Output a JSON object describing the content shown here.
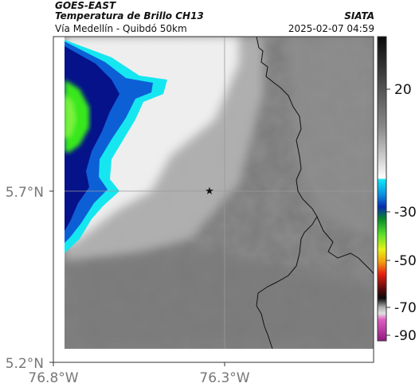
{
  "header": {
    "satellite": "GOES-EAST",
    "product": "Temperatura de Brillo CH13",
    "agency": "SIATA",
    "region": "Vía Medellín - Quibdó 50km",
    "datetime": "2025-02-07 04:59"
  },
  "map": {
    "lat_ticks": [
      "5.7°N",
      "5.2°N"
    ],
    "lon_ticks": [
      "76.8°W",
      "76.3°W"
    ],
    "marker": "star-marker",
    "colors": {
      "cold_core": "#39e81a",
      "deep_blue": "#05128a",
      "mid_blue": "#0d5fd6",
      "cyan": "#16e6f0",
      "cloud_white": "#ececec",
      "warm_gray": "#8c8c8c",
      "border_line": "#111111"
    }
  },
  "colorbar": {
    "ticks": [
      "20",
      "-30",
      "-50",
      "-70",
      "-90"
    ]
  }
}
